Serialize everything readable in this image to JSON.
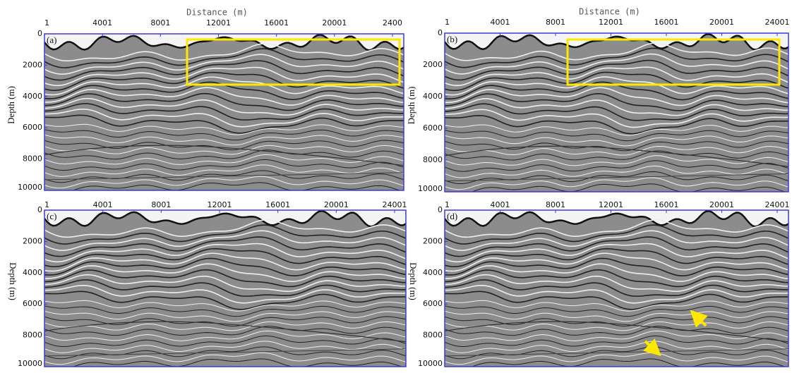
{
  "panels": [
    {
      "label": "(a)",
      "x_label": "Distance (m)",
      "y_label": "Depth (m)",
      "xticks": [
        "1",
        "4001",
        "8001",
        "12001",
        "16001",
        "20001",
        "2400"
      ],
      "yticks": [
        "0",
        "2000",
        "4000",
        "6000",
        "8000",
        "10000"
      ]
    },
    {
      "label": "(b)",
      "x_label": "Distance (m)",
      "y_label": "Depth (m)",
      "xticks": [
        "1",
        "4001",
        "8001",
        "12001",
        "16001",
        "20001",
        "24001"
      ],
      "yticks": [
        "0",
        "2000",
        "4000",
        "6000",
        "8000",
        "10000"
      ]
    },
    {
      "label": "(c)",
      "y_label": "Depth (m)",
      "xticks": [
        "1",
        "4001",
        "8001",
        "12001",
        "16001",
        "20001",
        "24001"
      ],
      "yticks": [
        "0",
        "2000",
        "4000",
        "6000",
        "8000",
        "10000"
      ]
    },
    {
      "label": "(d)",
      "y_label": "Depth (m)",
      "xticks": [
        "1",
        "4001",
        "8001",
        "12001",
        "16001",
        "20001",
        "24001"
      ],
      "yticks": [
        "0",
        "2000",
        "4000",
        "6000",
        "8000",
        "10000"
      ]
    }
  ]
}
